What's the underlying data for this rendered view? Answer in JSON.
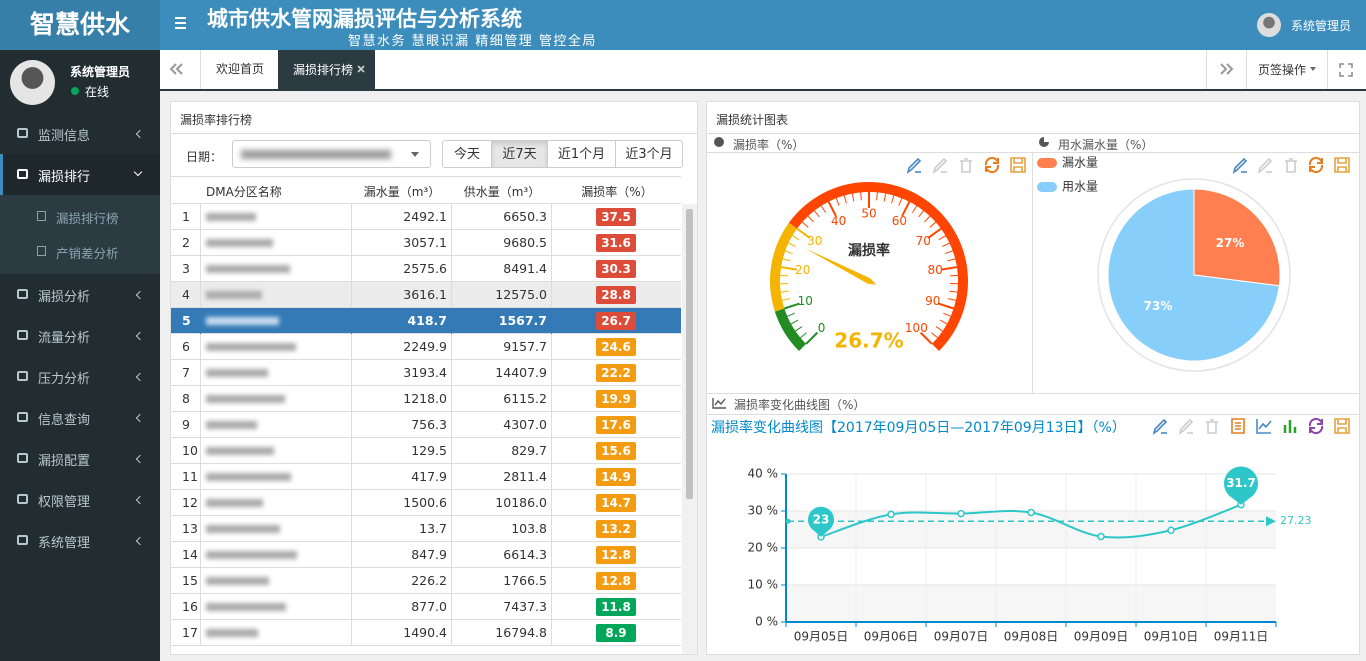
{
  "header": {
    "logo": "智慧供水",
    "title": "城市供水管网漏损评估与分析系统",
    "subtitle": "智慧水务 慧眼识漏 精细管理 管控全局",
    "user": "系统管理员"
  },
  "sidebar": {
    "user": "系统管理员",
    "status": "在线",
    "menu": [
      {
        "label": "监测信息"
      },
      {
        "label": "漏损排行",
        "children": [
          "漏损排行榜",
          "产销差分析"
        ]
      },
      {
        "label": "漏损分析"
      },
      {
        "label": "流量分析"
      },
      {
        "label": "压力分析"
      },
      {
        "label": "信息查询"
      },
      {
        "label": "漏损配置"
      },
      {
        "label": "权限管理"
      },
      {
        "label": "系统管理"
      }
    ]
  },
  "tabs": {
    "items": [
      "欢迎首页",
      "漏损排行榜"
    ],
    "actions": "页签操作"
  },
  "ranking": {
    "title": "漏损率排行榜",
    "date_label": "日期：",
    "ranges": [
      "今天",
      "近7天",
      "近1个月",
      "近3个月"
    ],
    "columns": [
      "DMA分区名称",
      "漏水量（m³）",
      "供水量（m³）",
      "漏损率（%）"
    ],
    "rows": [
      {
        "no": "1",
        "leak": "2492.1",
        "supply": "6650.3",
        "rate": "37.5",
        "color": "#dd4b39"
      },
      {
        "no": "2",
        "leak": "3057.1",
        "supply": "9680.5",
        "rate": "31.6",
        "color": "#dd4b39"
      },
      {
        "no": "3",
        "leak": "2575.6",
        "supply": "8491.4",
        "rate": "30.3",
        "color": "#dd4b39"
      },
      {
        "no": "4",
        "leak": "3616.1",
        "supply": "12575.0",
        "rate": "28.8",
        "color": "#dd4b39",
        "hover": true
      },
      {
        "no": "5",
        "leak": "418.7",
        "supply": "1567.7",
        "rate": "26.7",
        "color": "#dd4b39",
        "selected": true
      },
      {
        "no": "6",
        "leak": "2249.9",
        "supply": "9157.7",
        "rate": "24.6",
        "color": "#f39c12"
      },
      {
        "no": "7",
        "leak": "3193.4",
        "supply": "14407.9",
        "rate": "22.2",
        "color": "#f39c12"
      },
      {
        "no": "8",
        "leak": "1218.0",
        "supply": "6115.2",
        "rate": "19.9",
        "color": "#f39c12"
      },
      {
        "no": "9",
        "leak": "756.3",
        "supply": "4307.0",
        "rate": "17.6",
        "color": "#f39c12"
      },
      {
        "no": "10",
        "leak": "129.5",
        "supply": "829.7",
        "rate": "15.6",
        "color": "#f39c12"
      },
      {
        "no": "11",
        "leak": "417.9",
        "supply": "2811.4",
        "rate": "14.9",
        "color": "#f39c12"
      },
      {
        "no": "12",
        "leak": "1500.6",
        "supply": "10186.0",
        "rate": "14.7",
        "color": "#f39c12"
      },
      {
        "no": "13",
        "leak": "13.7",
        "supply": "103.8",
        "rate": "13.2",
        "color": "#f39c12"
      },
      {
        "no": "14",
        "leak": "847.9",
        "supply": "6614.3",
        "rate": "12.8",
        "color": "#f39c12"
      },
      {
        "no": "15",
        "leak": "226.2",
        "supply": "1766.5",
        "rate": "12.8",
        "color": "#f39c12"
      },
      {
        "no": "16",
        "leak": "877.0",
        "supply": "7437.3",
        "rate": "11.8",
        "color": "#00a65a"
      },
      {
        "no": "17",
        "leak": "1490.4",
        "supply": "16794.8",
        "rate": "8.9",
        "color": "#00a65a"
      }
    ]
  },
  "stats": {
    "title": "漏损统计图表"
  },
  "chart_data": [
    {
      "type": "gauge",
      "header": "漏损率（%）",
      "name": "漏损率",
      "value": 26.7,
      "value_label": "26.7%",
      "ylim": [
        0,
        100
      ],
      "yticks": [
        0,
        10,
        20,
        30,
        40,
        50,
        60,
        70,
        80,
        90,
        100
      ],
      "bands": [
        {
          "to": 10,
          "color": "#228b22"
        },
        {
          "to": 30,
          "color": "#f5b400"
        },
        {
          "to": 100,
          "color": "#ff4500"
        }
      ]
    },
    {
      "type": "pie",
      "header": "用水漏水量（%）",
      "categories": [
        "漏水量",
        "用水量"
      ],
      "values": [
        27,
        73
      ],
      "value_labels": [
        "27%",
        "73%"
      ],
      "colors": [
        "#ff7f50",
        "#87cefa"
      ]
    },
    {
      "type": "line",
      "header": "漏损率变化曲线图（%）",
      "title": "漏损率变化曲线图【2017年09月05日—2017年09月13日】（%）",
      "categories": [
        "09月05日",
        "09月06日",
        "09月07日",
        "09月08日",
        "09月09日",
        "09月10日",
        "09月11日"
      ],
      "values": [
        23,
        29.1,
        29.3,
        29.6,
        23.1,
        24.8,
        31.7
      ],
      "color": "#2ec7c9",
      "axis_color": "#008acd",
      "mean": 27.23,
      "grid": true,
      "ylim": [
        0,
        40
      ],
      "yticks": [
        {
          "value": 0,
          "label": "0 %"
        },
        {
          "value": 10,
          "label": "10 %"
        },
        {
          "value": 20,
          "label": "20 %"
        },
        {
          "value": 30,
          "label": "30 %"
        },
        {
          "value": 40,
          "label": "40 %"
        }
      ]
    }
  ]
}
